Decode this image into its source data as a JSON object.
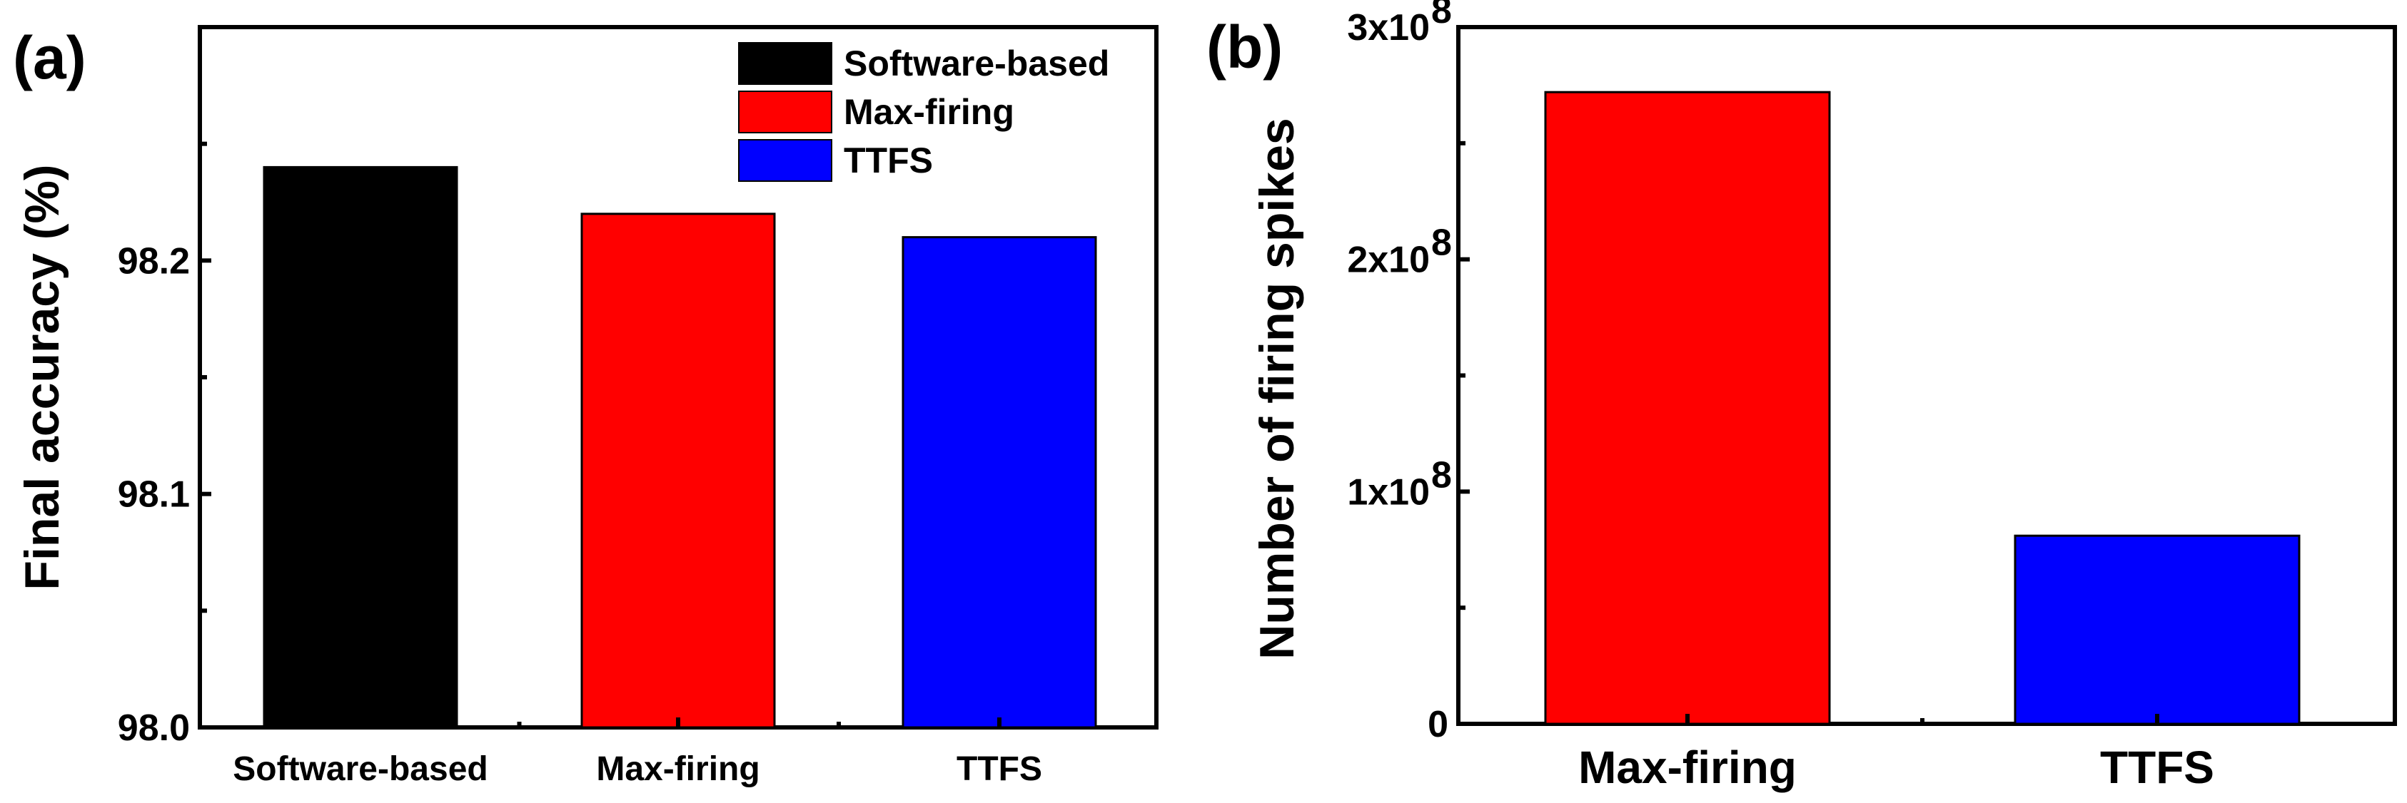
{
  "chart_data": [
    {
      "panel_label": "(a)",
      "type": "bar",
      "categories": [
        "Software-based",
        "Max-firing",
        "TTFS"
      ],
      "values": [
        98.24,
        98.22,
        98.21
      ],
      "colors": [
        "#000000",
        "#ff0000",
        "#0000ff"
      ],
      "ylabel": "Final accuracy (%)",
      "xlabel": "",
      "ylim": [
        98.0,
        98.3
      ],
      "yticks": [
        98.0,
        98.1,
        98.2
      ],
      "ytick_labels": [
        "98.0",
        "98.1",
        "98.2"
      ],
      "legend": {
        "position": "top-right",
        "entries": [
          {
            "label": "Software-based",
            "color": "#000000"
          },
          {
            "label": "Max-firing",
            "color": "#ff0000"
          },
          {
            "label": "TTFS",
            "color": "#0000ff"
          }
        ]
      }
    },
    {
      "panel_label": "(b)",
      "type": "bar",
      "categories": [
        "Max-firing",
        "TTFS"
      ],
      "values": [
        272000000,
        81000000
      ],
      "colors": [
        "#ff0000",
        "#0000ff"
      ],
      "ylabel": "Number of firing spikes",
      "xlabel": "",
      "ylim": [
        0,
        300000000
      ],
      "yticks": [
        0,
        100000000,
        200000000,
        300000000
      ],
      "ytick_labels": [
        "0",
        "1x10",
        "2x10",
        "3x10"
      ],
      "ytick_exponents": [
        "",
        "8",
        "8",
        "8"
      ]
    }
  ]
}
